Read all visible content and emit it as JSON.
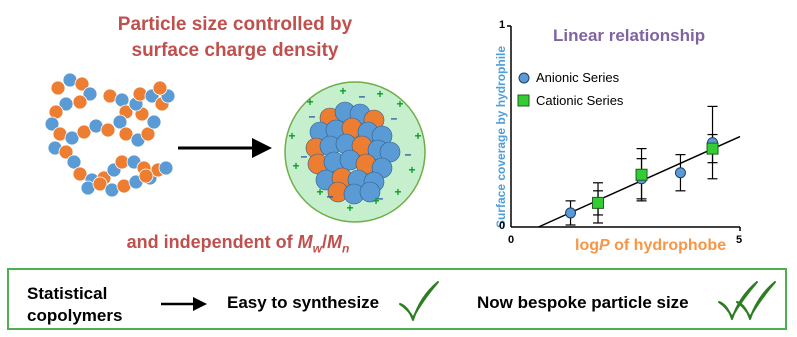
{
  "headline": {
    "line1": "Particle size controlled by",
    "line2": "surface charge density"
  },
  "footnote": {
    "prefix": "and independent of ",
    "mw": "M",
    "mw_sub": "w",
    "slash": "/",
    "mn": "M",
    "mn_sub": "n"
  },
  "chart": {
    "title": "Linear relationship",
    "ylabel": "Surface coverage by hydrophile",
    "xlabel_prefix": "log",
    "xlabel_italic": "P",
    "xlabel_suffix": " of hydrophobe",
    "xticks": [
      "0",
      "5"
    ],
    "yticks": [
      "1",
      "0"
    ],
    "legend": [
      "Anionic Series",
      "Cationic Series"
    ]
  },
  "chart_data": {
    "type": "scatter",
    "title": "Linear relationship",
    "xlabel": "logP of hydrophobe",
    "ylabel": "Surface coverage by hydrophile",
    "xlim": [
      0,
      5
    ],
    "ylim": [
      0,
      1
    ],
    "series": [
      {
        "name": "Anionic Series",
        "color": "#5b9bd5",
        "marker": "circle",
        "points": [
          {
            "x": 1.3,
            "y": 0.07,
            "err": 0.06
          },
          {
            "x": 1.9,
            "y": 0.12,
            "err": 0.1
          },
          {
            "x": 2.85,
            "y": 0.24,
            "err": 0.1
          },
          {
            "x": 3.7,
            "y": 0.27,
            "err": 0.09
          },
          {
            "x": 4.4,
            "y": 0.42,
            "err": 0.18
          }
        ]
      },
      {
        "name": "Cationic Series",
        "color": "#33cc33",
        "marker": "square",
        "points": [
          {
            "x": 1.9,
            "y": 0.12,
            "err": 0.06
          },
          {
            "x": 2.85,
            "y": 0.26,
            "err": 0.13
          },
          {
            "x": 4.4,
            "y": 0.39,
            "err": 0.07
          }
        ]
      }
    ],
    "fit_line": {
      "x": [
        0.6,
        5
      ],
      "y": [
        0.0,
        0.45
      ]
    }
  },
  "bottom": {
    "statistical_line1": "Statistical",
    "statistical_line2": "copolymers",
    "easy": "Easy to synthesize",
    "bespoke": "Now bespoke particle size"
  },
  "charges": {
    "plus": "+",
    "minus": "–"
  },
  "colors": {
    "orange_bead": "#ed7d31",
    "blue_bead": "#5b9bd5",
    "check_green": "#3aa02c",
    "particle_halo": "#c6efce"
  }
}
